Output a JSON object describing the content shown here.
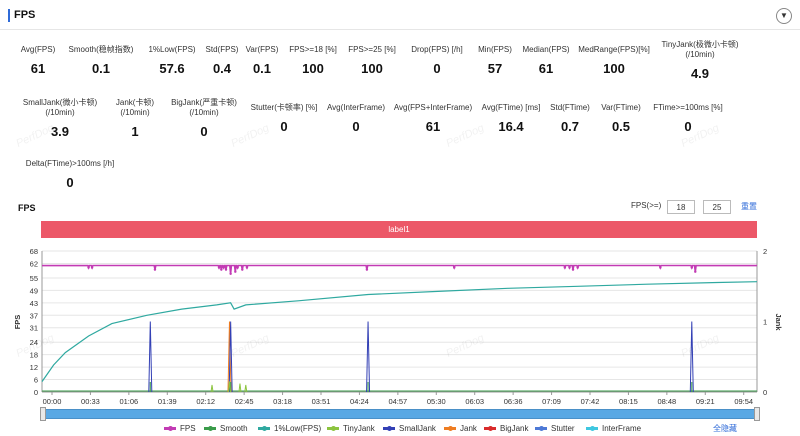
{
  "header": {
    "title": "FPS",
    "toggle_glyph": "▼",
    "toggle_icon": "chevron-down-icon"
  },
  "metrics_rows": [
    [
      {
        "label": "Avg(FPS)",
        "value": "61",
        "help": false
      },
      {
        "label": "Smooth(稳帧指数)",
        "value": "0.1",
        "help": true
      },
      {
        "label": "1%Low(FPS)",
        "value": "57.6",
        "help": false
      },
      {
        "label": "Std(FPS)",
        "value": "0.4",
        "help": false
      },
      {
        "label": "Var(FPS)",
        "value": "0.1",
        "help": false
      },
      {
        "label": "FPS>=18 [%]",
        "value": "100",
        "help": false
      },
      {
        "label": "FPS>=25 [%]",
        "value": "100",
        "help": false
      },
      {
        "label": "Drop(FPS) [/h]",
        "value": "0",
        "help": true
      },
      {
        "label": "Min(FPS)",
        "value": "57",
        "help": false
      },
      {
        "label": "Median(FPS)",
        "value": "61",
        "help": false
      },
      {
        "label": "MedRange(FPS)[%]",
        "value": "100",
        "help": false
      },
      {
        "label": "TinyJank(极微小卡顿)",
        "label2": "(/10min)",
        "value": "4.9",
        "help": true
      }
    ],
    [
      {
        "label": "SmallJank(微小卡顿)",
        "label2": "(/10min)",
        "value": "3.9",
        "help": true
      },
      {
        "label": "Jank(卡顿)",
        "label2": "(/10min)",
        "value": "1",
        "help": true
      },
      {
        "label": "BigJank(严重卡顿)",
        "label2": "(/10min)",
        "value": "0",
        "help": true
      },
      {
        "label": "Stutter(卡顿率) [%]",
        "value": "0",
        "help": false
      },
      {
        "label": "Avg(InterFrame)",
        "value": "0",
        "help": false
      },
      {
        "label": "Avg(FPS+InterFrame)",
        "value": "61",
        "help": false
      },
      {
        "label": "Avg(FTime) [ms]",
        "value": "16.4",
        "help": false
      },
      {
        "label": "Std(FTime)",
        "value": "0.7",
        "help": false
      },
      {
        "label": "Var(FTime)",
        "value": "0.5",
        "help": false
      },
      {
        "label": "FTime>=100ms [%]",
        "value": "0",
        "help": false
      }
    ],
    [
      {
        "label": "Delta(FTime)>100ms [/h]",
        "value": "0",
        "help": false
      }
    ]
  ],
  "chart_controls": {
    "title": "FPS",
    "threshold_label": "FPS(>=)",
    "threshold_low": "18",
    "threshold_high": "25",
    "reset_label": "重置",
    "label_bar": "label1",
    "hide_all_label": "全隐藏",
    "watermark": "PerfDog"
  },
  "chart_data": {
    "type": "line",
    "xlabel": "",
    "ylabel": "FPS",
    "y2label": "Jank",
    "ylim": [
      0,
      68
    ],
    "yticks": [
      0,
      6,
      12,
      18,
      24,
      31,
      37,
      43,
      49,
      55,
      62,
      68
    ],
    "y2lim": [
      0,
      2
    ],
    "y2ticks": [
      0,
      1,
      2
    ],
    "xticks": [
      "00:00",
      "00:33",
      "01:06",
      "01:39",
      "02:12",
      "02:45",
      "03:18",
      "03:51",
      "04:24",
      "04:57",
      "05:30",
      "06:03",
      "06:36",
      "07:09",
      "07:42",
      "08:15",
      "08:48",
      "09:21",
      "09:54"
    ],
    "x_max_seconds": 614,
    "grid": true,
    "legend_position": "bottom",
    "fps_baseline": 61,
    "fps_dips": [
      {
        "t": 40,
        "v": 60
      },
      {
        "t": 43,
        "v": 60
      },
      {
        "t": 97,
        "v": 59
      },
      {
        "t": 152,
        "v": 60
      },
      {
        "t": 154,
        "v": 59
      },
      {
        "t": 156,
        "v": 60
      },
      {
        "t": 158,
        "v": 59
      },
      {
        "t": 162,
        "v": 57
      },
      {
        "t": 166,
        "v": 58
      },
      {
        "t": 168,
        "v": 60
      },
      {
        "t": 172,
        "v": 59
      },
      {
        "t": 176,
        "v": 60
      },
      {
        "t": 279,
        "v": 59
      },
      {
        "t": 354,
        "v": 60
      },
      {
        "t": 449,
        "v": 60
      },
      {
        "t": 453,
        "v": 60
      },
      {
        "t": 456,
        "v": 59
      },
      {
        "t": 460,
        "v": 60
      },
      {
        "t": 531,
        "v": 60
      },
      {
        "t": 558,
        "v": 60
      },
      {
        "t": 561,
        "v": 58
      }
    ],
    "smooth_series": [
      {
        "t": 0,
        "v": 5
      },
      {
        "t": 10,
        "v": 13
      },
      {
        "t": 20,
        "v": 19
      },
      {
        "t": 40,
        "v": 27
      },
      {
        "t": 60,
        "v": 33
      },
      {
        "t": 90,
        "v": 37
      },
      {
        "t": 120,
        "v": 40
      },
      {
        "t": 150,
        "v": 42
      },
      {
        "t": 162,
        "v": 43
      },
      {
        "t": 165,
        "v": 40
      },
      {
        "t": 175,
        "v": 42
      },
      {
        "t": 220,
        "v": 44
      },
      {
        "t": 280,
        "v": 47
      },
      {
        "t": 340,
        "v": 48.5
      },
      {
        "t": 400,
        "v": 50
      },
      {
        "t": 460,
        "v": 51
      },
      {
        "t": 520,
        "v": 52
      },
      {
        "t": 580,
        "v": 52.8
      },
      {
        "t": 614,
        "v": 53.2
      }
    ],
    "jank_events": [
      {
        "t": 93,
        "series": "SmallJank",
        "v": 1
      },
      {
        "t": 161,
        "series": "Jank",
        "v": 1
      },
      {
        "t": 162,
        "series": "SmallJank",
        "v": 1
      },
      {
        "t": 280,
        "series": "SmallJank",
        "v": 1
      },
      {
        "t": 558,
        "series": "SmallJank",
        "v": 1
      }
    ],
    "tinyjank_events": [
      {
        "t": 146,
        "v": 0.1
      },
      {
        "t": 161,
        "v": 0.15
      },
      {
        "t": 170,
        "v": 0.12
      },
      {
        "t": 175,
        "v": 0.1
      }
    ],
    "series_names": [
      "FPS",
      "Smooth",
      "1%Low(FPS)",
      "TinyJank",
      "SmallJank",
      "Jank",
      "BigJank",
      "Stutter",
      "InterFrame"
    ],
    "series_colors": {
      "FPS": "#c23bb4",
      "Smooth": "#3a9b4a",
      "1%Low(FPS)": "#2fa9a0",
      "TinyJank": "#8cc43f",
      "SmallJank": "#3340b5",
      "Jank": "#ee7d22",
      "BigJank": "#d92b2b",
      "Stutter": "#4d79d6",
      "InterFrame": "#3ec7e0"
    }
  }
}
